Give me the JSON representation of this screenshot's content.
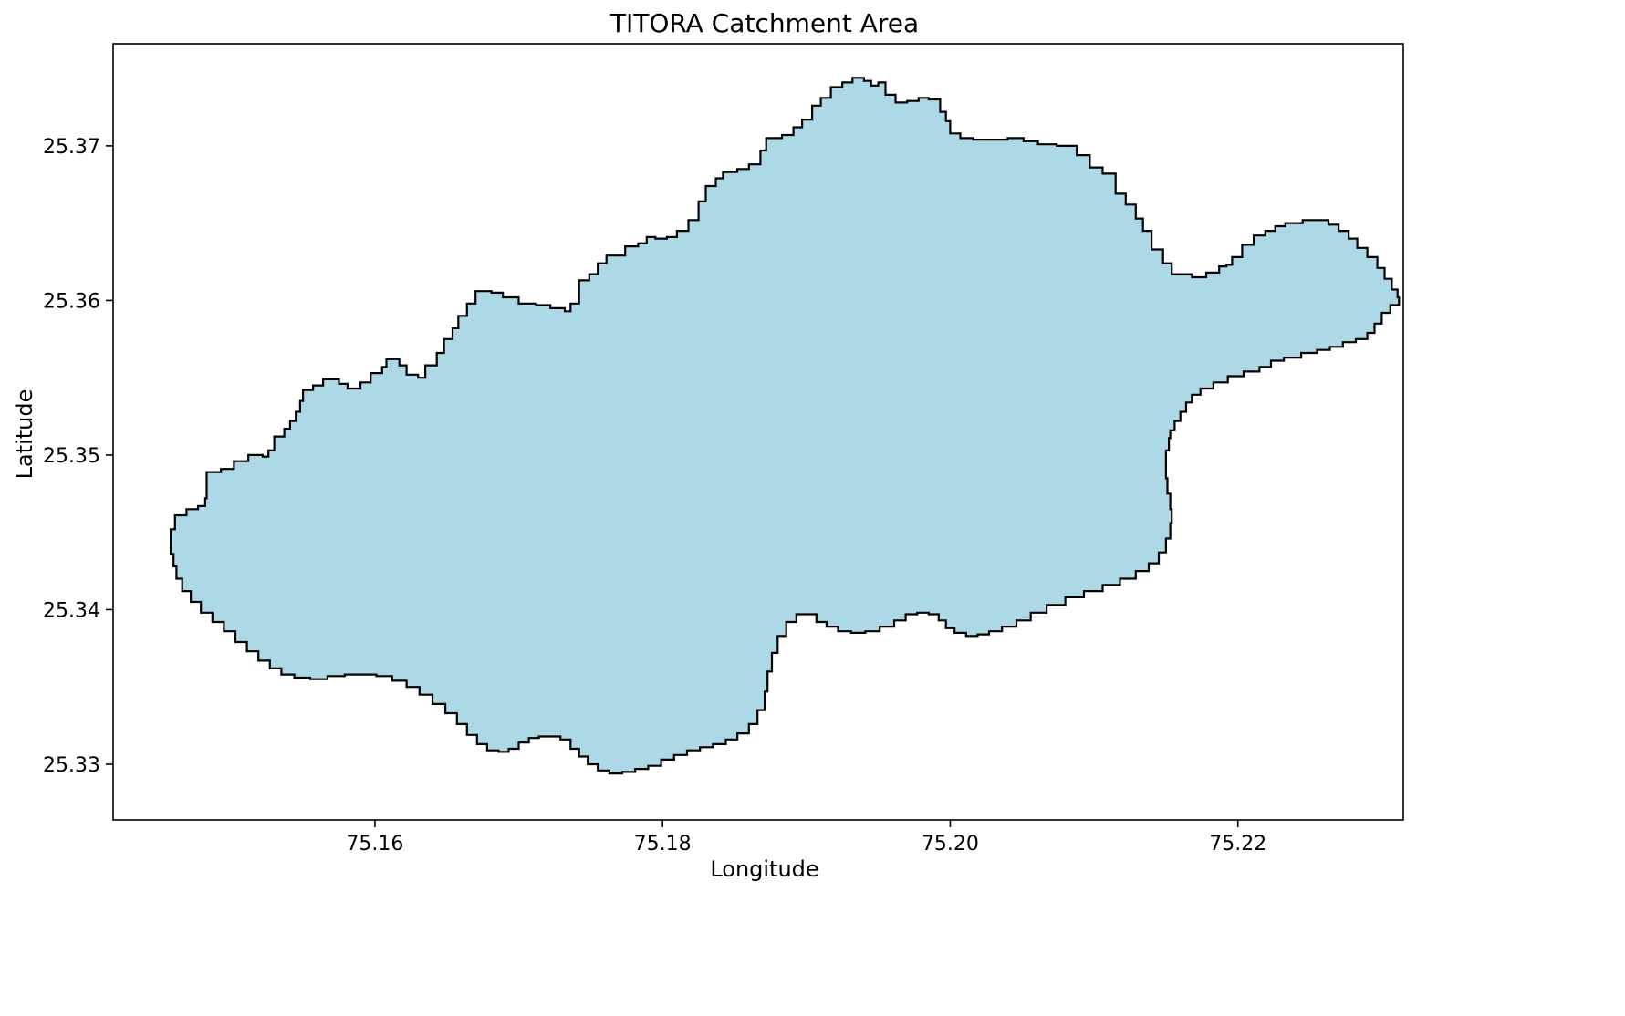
{
  "chart_data": {
    "type": "map",
    "title": "TITORA Catchment Area",
    "xlabel": "Longitude",
    "ylabel": "Latitude",
    "xlim": [
      75.1418,
      75.2315
    ],
    "ylim": [
      25.3264,
      25.3766
    ],
    "xticks": [
      75.16,
      75.18,
      75.2,
      75.22
    ],
    "xtick_labels": [
      "75.16",
      "75.18",
      "75.20",
      "75.22"
    ],
    "yticks": [
      25.33,
      25.34,
      25.35,
      25.36,
      25.37
    ],
    "ytick_labels": [
      "25.33",
      "25.34",
      "25.35",
      "25.36",
      "25.37"
    ],
    "grid": false,
    "fill_color": "#add8e6",
    "edge_color": "#000000",
    "boundary": [
      [
        75.1458,
        25.3452
      ],
      [
        75.1461,
        25.3461
      ],
      [
        75.1469,
        25.3465
      ],
      [
        75.1477,
        25.3467
      ],
      [
        75.1482,
        25.3472
      ],
      [
        75.1483,
        25.3489
      ],
      [
        75.1493,
        25.3491
      ],
      [
        75.1502,
        25.3496
      ],
      [
        75.1512,
        25.35
      ],
      [
        75.1522,
        25.3499
      ],
      [
        75.1526,
        25.3503
      ],
      [
        75.153,
        25.3512
      ],
      [
        75.1537,
        25.3517
      ],
      [
        75.1541,
        25.3522
      ],
      [
        75.1545,
        25.3528
      ],
      [
        75.1548,
        25.3535
      ],
      [
        75.155,
        25.3542
      ],
      [
        75.1557,
        25.3545
      ],
      [
        75.1564,
        25.3549
      ],
      [
        75.1575,
        25.3546
      ],
      [
        75.1581,
        25.3543
      ],
      [
        75.159,
        25.3547
      ],
      [
        75.1597,
        25.3553
      ],
      [
        75.1605,
        25.3557
      ],
      [
        75.1608,
        25.3562
      ],
      [
        75.1617,
        25.3558
      ],
      [
        75.1622,
        25.3552
      ],
      [
        75.163,
        25.355
      ],
      [
        75.1635,
        25.3558
      ],
      [
        75.1643,
        25.3566
      ],
      [
        75.1648,
        25.3575
      ],
      [
        75.1654,
        25.3582
      ],
      [
        75.1658,
        25.359
      ],
      [
        75.1664,
        25.3598
      ],
      [
        75.167,
        25.3606
      ],
      [
        75.1681,
        25.3605
      ],
      [
        75.1689,
        25.3602
      ],
      [
        75.17,
        25.3598
      ],
      [
        75.1712,
        25.3597
      ],
      [
        75.1722,
        25.3595
      ],
      [
        75.1732,
        25.3593
      ],
      [
        75.1736,
        25.3598
      ],
      [
        75.1742,
        25.3613
      ],
      [
        75.1749,
        25.3617
      ],
      [
        75.1755,
        25.3624
      ],
      [
        75.1761,
        25.3629
      ],
      [
        75.1774,
        25.3635
      ],
      [
        75.1783,
        25.3637
      ],
      [
        75.1789,
        25.3641
      ],
      [
        75.1795,
        25.364
      ],
      [
        75.1803,
        25.3641
      ],
      [
        75.181,
        25.3645
      ],
      [
        75.1818,
        25.3652
      ],
      [
        75.1825,
        25.3664
      ],
      [
        75.183,
        25.3674
      ],
      [
        75.1837,
        25.3679
      ],
      [
        75.1842,
        25.3683
      ],
      [
        75.1852,
        25.3685
      ],
      [
        75.186,
        25.3688
      ],
      [
        75.1868,
        25.3697
      ],
      [
        75.1872,
        25.3705
      ],
      [
        75.1883,
        25.3707
      ],
      [
        75.1891,
        25.3712
      ],
      [
        75.1897,
        25.3717
      ],
      [
        75.1904,
        25.3726
      ],
      [
        75.191,
        25.3731
      ],
      [
        75.1917,
        25.3738
      ],
      [
        75.1925,
        25.3741
      ],
      [
        75.1932,
        25.3744
      ],
      [
        75.194,
        25.3742
      ],
      [
        75.1945,
        25.3739
      ],
      [
        75.195,
        25.3741
      ],
      [
        75.1955,
        25.3733
      ],
      [
        75.1962,
        25.3728
      ],
      [
        75.197,
        25.3729
      ],
      [
        75.1978,
        25.3731
      ],
      [
        75.1985,
        25.373
      ],
      [
        75.1993,
        25.3722
      ],
      [
        75.1997,
        25.3716
      ],
      [
        75.2,
        25.3708
      ],
      [
        75.2007,
        25.3705
      ],
      [
        75.2016,
        25.3704
      ],
      [
        75.2027,
        25.3704
      ],
      [
        75.204,
        25.3705
      ],
      [
        75.2051,
        25.3703
      ],
      [
        75.2061,
        25.3701
      ],
      [
        75.2074,
        25.37
      ],
      [
        75.2088,
        25.3694
      ],
      [
        75.2097,
        25.3686
      ],
      [
        75.2106,
        25.3682
      ],
      [
        75.2115,
        25.3669
      ],
      [
        75.2122,
        25.3662
      ],
      [
        75.2129,
        25.3653
      ],
      [
        75.2134,
        25.3645
      ],
      [
        75.214,
        25.3633
      ],
      [
        75.2148,
        25.3624
      ],
      [
        75.2154,
        25.3617
      ],
      [
        75.2168,
        25.3615
      ],
      [
        75.2178,
        25.3618
      ],
      [
        75.2187,
        25.3622
      ],
      [
        75.2192,
        25.3623
      ],
      [
        75.2196,
        25.3628
      ],
      [
        75.2203,
        25.3636
      ],
      [
        75.2211,
        25.3642
      ],
      [
        75.2219,
        25.3645
      ],
      [
        75.2226,
        25.3648
      ],
      [
        75.2233,
        25.365
      ],
      [
        75.2245,
        25.3652
      ],
      [
        75.2253,
        25.3652
      ],
      [
        75.2263,
        25.3649
      ],
      [
        75.227,
        25.3645
      ],
      [
        75.2277,
        25.364
      ],
      [
        75.2283,
        25.3634
      ],
      [
        75.229,
        25.3628
      ],
      [
        75.2297,
        25.3621
      ],
      [
        75.2302,
        25.3614
      ],
      [
        75.2307,
        25.3607
      ],
      [
        75.2311,
        25.3602
      ],
      [
        75.2312,
        25.3597
      ],
      [
        75.2306,
        25.3592
      ],
      [
        75.23,
        25.3585
      ],
      [
        75.2295,
        25.3579
      ],
      [
        75.229,
        25.3575
      ],
      [
        75.2282,
        25.3573
      ],
      [
        75.2273,
        25.357
      ],
      [
        75.2264,
        25.3568
      ],
      [
        75.2255,
        25.3566
      ],
      [
        75.2244,
        25.3563
      ],
      [
        75.2232,
        25.3561
      ],
      [
        75.2223,
        25.3557
      ],
      [
        75.2215,
        25.3554
      ],
      [
        75.2204,
        25.3551
      ],
      [
        75.2193,
        25.3547
      ],
      [
        75.2183,
        25.3543
      ],
      [
        75.2174,
        25.3539
      ],
      [
        75.2168,
        25.3534
      ],
      [
        75.2164,
        25.3528
      ],
      [
        75.216,
        25.3522
      ],
      [
        75.2156,
        25.3516
      ],
      [
        75.2153,
        25.3511
      ],
      [
        75.2152,
        25.3503
      ],
      [
        75.215,
        25.3494
      ],
      [
        75.215,
        25.3485
      ],
      [
        75.2151,
        25.3475
      ],
      [
        75.2153,
        25.3465
      ],
      [
        75.2154,
        25.3456
      ],
      [
        75.2153,
        25.3446
      ],
      [
        75.215,
        25.3437
      ],
      [
        75.2145,
        25.343
      ],
      [
        75.2138,
        25.3425
      ],
      [
        75.2129,
        25.342
      ],
      [
        75.2118,
        25.3416
      ],
      [
        75.2106,
        25.3412
      ],
      [
        75.2093,
        25.3408
      ],
      [
        75.208,
        25.3403
      ],
      [
        75.2067,
        25.3398
      ],
      [
        75.2056,
        25.3393
      ],
      [
        75.2046,
        25.3389
      ],
      [
        75.2036,
        25.3386
      ],
      [
        75.2027,
        25.3384
      ],
      [
        75.2019,
        25.3383
      ],
      [
        75.2011,
        25.3385
      ],
      [
        75.2003,
        25.3388
      ],
      [
        75.1997,
        25.3393
      ],
      [
        75.1992,
        25.3397
      ],
      [
        75.1985,
        25.3398
      ],
      [
        75.1977,
        25.3397
      ],
      [
        75.1969,
        25.3393
      ],
      [
        75.1961,
        25.3389
      ],
      [
        75.1951,
        25.3386
      ],
      [
        75.1941,
        25.3385
      ],
      [
        75.1931,
        25.3386
      ],
      [
        75.1922,
        25.3389
      ],
      [
        75.1914,
        25.3392
      ],
      [
        75.1907,
        25.3397
      ],
      [
        75.19,
        25.3397
      ],
      [
        75.1893,
        25.3392
      ],
      [
        75.1886,
        25.3383
      ],
      [
        75.188,
        25.3372
      ],
      [
        75.1876,
        25.336
      ],
      [
        75.1873,
        25.3347
      ],
      [
        75.1871,
        25.3335
      ],
      [
        75.1866,
        25.3326
      ],
      [
        75.186,
        25.332
      ],
      [
        75.1852,
        25.3316
      ],
      [
        75.1844,
        25.3313
      ],
      [
        75.1835,
        25.3311
      ],
      [
        75.1826,
        25.3309
      ],
      [
        75.1817,
        25.3306
      ],
      [
        75.1808,
        25.3303
      ],
      [
        75.1799,
        25.3299
      ],
      [
        75.179,
        25.3297
      ],
      [
        75.1781,
        25.3295
      ],
      [
        75.1772,
        25.3294
      ],
      [
        75.1763,
        25.3296
      ],
      [
        75.1755,
        25.33
      ],
      [
        75.1748,
        25.3305
      ],
      [
        75.1742,
        25.331
      ],
      [
        75.1736,
        25.3316
      ],
      [
        75.1729,
        25.3318
      ],
      [
        75.1722,
        25.3318
      ],
      [
        75.1714,
        25.3317
      ],
      [
        75.1707,
        25.3314
      ],
      [
        75.17,
        25.331
      ],
      [
        75.1693,
        25.3308
      ],
      [
        75.1686,
        25.3309
      ],
      [
        75.1678,
        25.3313
      ],
      [
        75.1671,
        25.3319
      ],
      [
        75.1664,
        25.3326
      ],
      [
        75.1657,
        25.3333
      ],
      [
        75.1649,
        25.3339
      ],
      [
        75.164,
        25.3345
      ],
      [
        75.1631,
        25.335
      ],
      [
        75.1622,
        25.3354
      ],
      [
        75.1612,
        25.3357
      ],
      [
        75.1601,
        25.3358
      ],
      [
        75.159,
        25.3358
      ],
      [
        75.1579,
        25.3357
      ],
      [
        75.1567,
        25.3355
      ],
      [
        75.1555,
        25.3356
      ],
      [
        75.1544,
        25.3358
      ],
      [
        75.1535,
        25.3362
      ],
      [
        75.1527,
        25.3367
      ],
      [
        75.1519,
        25.3373
      ],
      [
        75.1511,
        25.3379
      ],
      [
        75.1503,
        25.3386
      ],
      [
        75.1495,
        25.3392
      ],
      [
        75.1487,
        25.3398
      ],
      [
        75.1479,
        25.3405
      ],
      [
        75.1472,
        25.3412
      ],
      [
        75.1466,
        25.342
      ],
      [
        75.1462,
        25.3428
      ],
      [
        75.146,
        25.3436
      ],
      [
        75.1458,
        25.3444
      ]
    ]
  }
}
